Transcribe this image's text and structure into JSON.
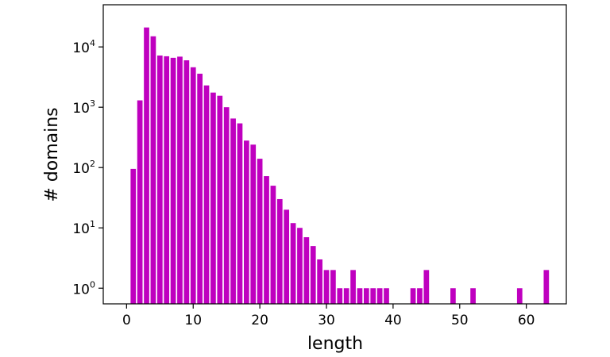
{
  "chart_data": {
    "type": "bar",
    "xlabel": "length",
    "ylabel": "# domains",
    "yscale": "log",
    "xlim": [
      -3.5,
      66
    ],
    "ylim": [
      0.55,
      50000
    ],
    "xticks": [
      0,
      10,
      20,
      30,
      40,
      50,
      60
    ],
    "yticks": [
      {
        "value": 1,
        "base": "10",
        "exp": "0"
      },
      {
        "value": 10,
        "base": "10",
        "exp": "1"
      },
      {
        "value": 100,
        "base": "10",
        "exp": "2"
      },
      {
        "value": 1000,
        "base": "10",
        "exp": "3"
      },
      {
        "value": 10000,
        "base": "10",
        "exp": "4"
      }
    ],
    "color": "#bf00bf",
    "grid": false,
    "x": [
      1,
      2,
      3,
      4,
      5,
      6,
      7,
      8,
      9,
      10,
      11,
      12,
      13,
      14,
      15,
      16,
      17,
      18,
      19,
      20,
      21,
      22,
      23,
      24,
      25,
      26,
      27,
      28,
      29,
      30,
      31,
      32,
      33,
      34,
      35,
      36,
      37,
      38,
      39,
      43,
      44,
      45,
      49,
      52,
      59,
      63
    ],
    "values": [
      95,
      1300,
      21000,
      15000,
      7200,
      7000,
      6600,
      6900,
      6000,
      4600,
      3600,
      2300,
      1750,
      1550,
      1000,
      650,
      540,
      280,
      240,
      140,
      72,
      50,
      30,
      20,
      12,
      10,
      7,
      5,
      3,
      2,
      2,
      1,
      1,
      2,
      1,
      1,
      1,
      1,
      1,
      1,
      1,
      2,
      1,
      1,
      1,
      2
    ]
  }
}
